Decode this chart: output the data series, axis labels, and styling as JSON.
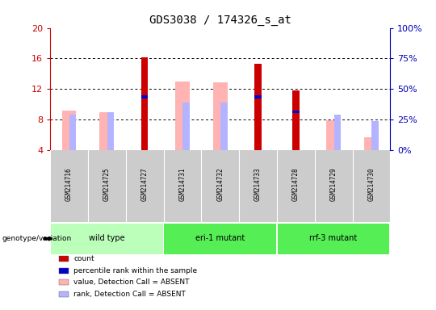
{
  "title": "GDS3038 / 174326_s_at",
  "samples": [
    "GSM214716",
    "GSM214725",
    "GSM214727",
    "GSM214731",
    "GSM214732",
    "GSM214733",
    "GSM214728",
    "GSM214729",
    "GSM214730"
  ],
  "count_values": [
    null,
    null,
    16.2,
    null,
    null,
    15.35,
    11.85,
    null,
    null
  ],
  "percentile_values": [
    null,
    null,
    11.0,
    null,
    null,
    11.0,
    9.0,
    null,
    null
  ],
  "value_absent": [
    9.2,
    9.0,
    null,
    13.0,
    12.9,
    null,
    null,
    7.9,
    5.7
  ],
  "rank_absent": [
    8.7,
    9.0,
    null,
    10.3,
    10.3,
    null,
    null,
    8.7,
    7.8
  ],
  "ylim_left": [
    4,
    20
  ],
  "ylim_right": [
    0,
    100
  ],
  "yticks_left": [
    4,
    8,
    12,
    16,
    20
  ],
  "yticks_right": [
    0,
    25,
    50,
    75,
    100
  ],
  "count_color": "#cc0000",
  "percentile_color": "#0000cc",
  "value_absent_color": "#ffb3b3",
  "rank_absent_color": "#b3b3ff",
  "axis_color_left": "#cc0000",
  "axis_color_right": "#0000bb",
  "group_info": [
    {
      "label": "wild type",
      "start": 0,
      "end": 2,
      "color": "#bbffbb"
    },
    {
      "label": "eri-1 mutant",
      "start": 3,
      "end": 5,
      "color": "#55ee55"
    },
    {
      "label": "rrf-3 mutant",
      "start": 6,
      "end": 8,
      "color": "#55ee55"
    }
  ],
  "sample_bg_color": "#cccccc",
  "legend_items": [
    {
      "label": "count",
      "color": "#cc0000"
    },
    {
      "label": "percentile rank within the sample",
      "color": "#0000cc"
    },
    {
      "label": "value, Detection Call = ABSENT",
      "color": "#ffb3b3"
    },
    {
      "label": "rank, Detection Call = ABSENT",
      "color": "#b3b3ff"
    }
  ]
}
